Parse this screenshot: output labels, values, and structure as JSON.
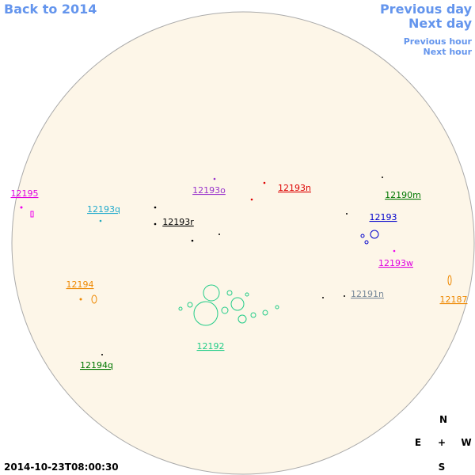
{
  "nav": {
    "back": "Back to 2014",
    "previous_day": "Previous day",
    "next_day": "Next day",
    "previous_hour": "Previous hour",
    "next_hour": "Next hour"
  },
  "regions": [
    {
      "label": "12195",
      "color": "#e000e0"
    },
    {
      "label": "12193q",
      "color": "#22aacc"
    },
    {
      "label": "12193o",
      "color": "#9933cc"
    },
    {
      "label": "12193n",
      "color": "#dd0000"
    },
    {
      "label": "12190m",
      "color": "#007700"
    },
    {
      "label": "12193",
      "color": "#0000cc"
    },
    {
      "label": "12193r",
      "color": "#000000"
    },
    {
      "label": "12193w",
      "color": "#e000e0"
    },
    {
      "label": "12194",
      "color": "#ee8800"
    },
    {
      "label": "12191n",
      "color": "#778899"
    },
    {
      "label": "12187",
      "color": "#ee8800"
    },
    {
      "label": "12192",
      "color": "#22cc88"
    },
    {
      "label": "12194q",
      "color": "#007700"
    }
  ],
  "compass": {
    "north": "N",
    "east": "E",
    "center": "+",
    "west": "W",
    "south": "S"
  },
  "timestamp": "2014-10-23T08:00:30"
}
